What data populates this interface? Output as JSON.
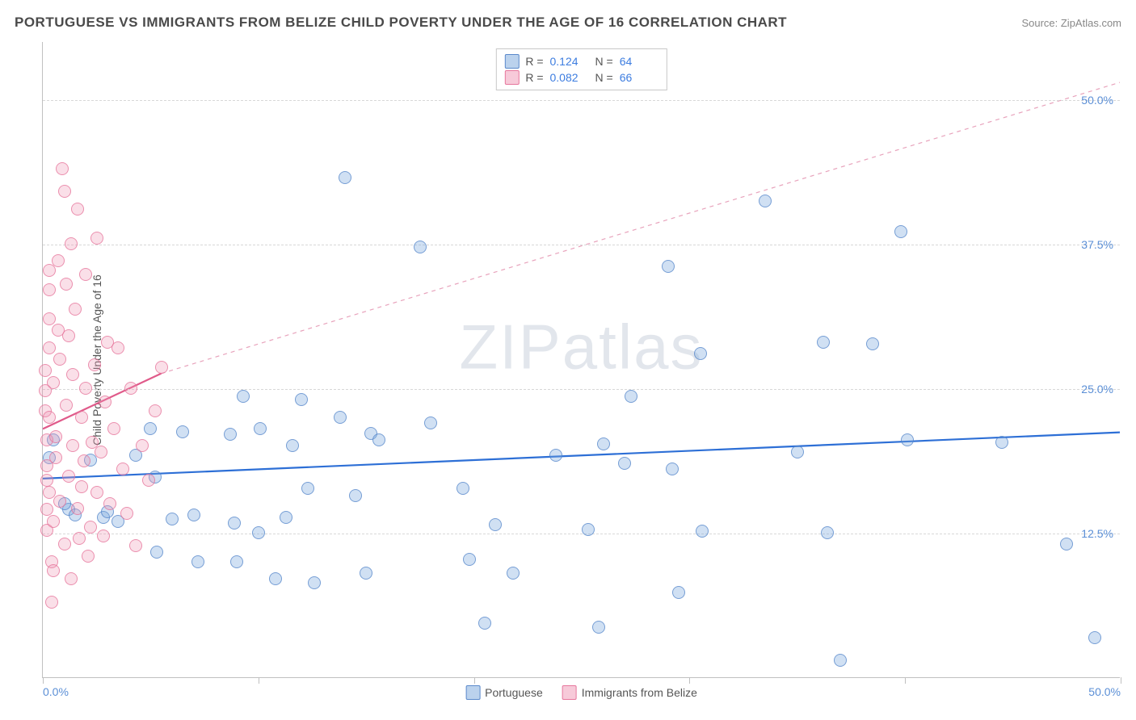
{
  "title": "PORTUGUESE VS IMMIGRANTS FROM BELIZE CHILD POVERTY UNDER THE AGE OF 16 CORRELATION CHART",
  "source": "Source: ZipAtlas.com",
  "watermark_part1": "ZIP",
  "watermark_part2": "atlas",
  "y_axis_label": "Child Poverty Under the Age of 16",
  "chart": {
    "type": "scatter",
    "xlim": [
      0,
      50
    ],
    "ylim": [
      0,
      55
    ],
    "x_ticks": [
      0,
      10,
      20,
      30,
      40,
      50
    ],
    "x_tick_labels": [
      "0.0%",
      "",
      "",
      "",
      "",
      "50.0%"
    ],
    "y_ticks": [
      12.5,
      25.0,
      37.5,
      50.0
    ],
    "y_tick_labels": [
      "12.5%",
      "25.0%",
      "37.5%",
      "50.0%"
    ],
    "grid_color": "#d8d8d8",
    "background_color": "#ffffff",
    "series": [
      {
        "name": "Portuguese",
        "color_fill": "rgba(120,165,220,0.35)",
        "color_stroke": "rgba(80,130,200,0.7)",
        "marker_size": 16,
        "R": "0.124",
        "N": "64",
        "trend": {
          "x1": 0,
          "y1": 17.2,
          "x2": 50,
          "y2": 21.2,
          "color": "#2d6fd6",
          "width": 2.2,
          "dash": "none"
        },
        "extrapolation": null,
        "points": [
          [
            0.5,
            20.5
          ],
          [
            0.3,
            19.0
          ],
          [
            1.2,
            14.5
          ],
          [
            1.5,
            14.0
          ],
          [
            2.2,
            18.8
          ],
          [
            1.0,
            15.0
          ],
          [
            2.8,
            13.8
          ],
          [
            3.0,
            14.3
          ],
          [
            3.5,
            13.5
          ],
          [
            4.3,
            19.2
          ],
          [
            5.0,
            21.5
          ],
          [
            5.2,
            17.3
          ],
          [
            5.3,
            10.8
          ],
          [
            6.0,
            13.7
          ],
          [
            6.5,
            21.2
          ],
          [
            7.0,
            14.0
          ],
          [
            7.2,
            10.0
          ],
          [
            8.7,
            21.0
          ],
          [
            8.9,
            13.3
          ],
          [
            9.0,
            10.0
          ],
          [
            9.3,
            24.3
          ],
          [
            10.0,
            12.5
          ],
          [
            10.1,
            21.5
          ],
          [
            10.8,
            8.5
          ],
          [
            11.3,
            13.8
          ],
          [
            11.6,
            20.0
          ],
          [
            12.0,
            24.0
          ],
          [
            12.3,
            16.3
          ],
          [
            12.6,
            8.2
          ],
          [
            13.8,
            22.5
          ],
          [
            14.0,
            43.2
          ],
          [
            14.5,
            15.7
          ],
          [
            15.0,
            9.0
          ],
          [
            15.2,
            21.1
          ],
          [
            15.6,
            20.5
          ],
          [
            17.5,
            37.2
          ],
          [
            18.0,
            22.0
          ],
          [
            19.5,
            16.3
          ],
          [
            19.8,
            10.2
          ],
          [
            20.5,
            4.7
          ],
          [
            21.0,
            13.2
          ],
          [
            21.8,
            9.0
          ],
          [
            23.8,
            19.2
          ],
          [
            25.3,
            12.8
          ],
          [
            25.8,
            4.3
          ],
          [
            26.0,
            20.2
          ],
          [
            27.0,
            18.5
          ],
          [
            27.3,
            24.3
          ],
          [
            29.0,
            35.5
          ],
          [
            29.2,
            18.0
          ],
          [
            29.5,
            7.3
          ],
          [
            30.5,
            28.0
          ],
          [
            30.6,
            12.6
          ],
          [
            33.5,
            41.2
          ],
          [
            35.0,
            19.5
          ],
          [
            36.2,
            29.0
          ],
          [
            36.4,
            12.5
          ],
          [
            37.0,
            1.5
          ],
          [
            38.5,
            28.8
          ],
          [
            39.8,
            38.5
          ],
          [
            40.1,
            20.5
          ],
          [
            44.5,
            20.3
          ],
          [
            47.5,
            11.5
          ],
          [
            48.8,
            3.4
          ]
        ]
      },
      {
        "name": "Immigrants from Belize",
        "color_fill": "rgba(240,150,180,0.3)",
        "color_stroke": "rgba(230,110,150,0.7)",
        "marker_size": 16,
        "R": "0.082",
        "N": "66",
        "trend": {
          "x1": 0,
          "y1": 21.5,
          "x2": 5.5,
          "y2": 26.3,
          "color": "#e05a8a",
          "width": 2.2,
          "dash": "none"
        },
        "extrapolation": {
          "x1": 5.5,
          "y1": 26.3,
          "x2": 50,
          "y2": 51.5,
          "color": "#e8a3bc",
          "width": 1.2,
          "dash": "5,5"
        },
        "points": [
          [
            0.1,
            23.0
          ],
          [
            0.1,
            24.8
          ],
          [
            0.1,
            26.5
          ],
          [
            0.2,
            20.5
          ],
          [
            0.2,
            18.3
          ],
          [
            0.2,
            14.5
          ],
          [
            0.2,
            12.7
          ],
          [
            0.2,
            17.0
          ],
          [
            0.3,
            28.5
          ],
          [
            0.3,
            33.5
          ],
          [
            0.3,
            35.2
          ],
          [
            0.3,
            31.0
          ],
          [
            0.3,
            22.5
          ],
          [
            0.3,
            16.0
          ],
          [
            0.4,
            10.0
          ],
          [
            0.4,
            6.5
          ],
          [
            0.5,
            25.5
          ],
          [
            0.5,
            13.5
          ],
          [
            0.5,
            9.2
          ],
          [
            0.6,
            19.0
          ],
          [
            0.6,
            20.8
          ],
          [
            0.7,
            30.0
          ],
          [
            0.7,
            36.0
          ],
          [
            0.8,
            15.2
          ],
          [
            0.8,
            27.5
          ],
          [
            0.9,
            44.0
          ],
          [
            1.0,
            42.0
          ],
          [
            1.0,
            11.5
          ],
          [
            1.1,
            23.5
          ],
          [
            1.1,
            34.0
          ],
          [
            1.2,
            17.4
          ],
          [
            1.2,
            29.5
          ],
          [
            1.3,
            37.5
          ],
          [
            1.3,
            8.5
          ],
          [
            1.4,
            20.0
          ],
          [
            1.4,
            26.2
          ],
          [
            1.5,
            31.8
          ],
          [
            1.6,
            14.6
          ],
          [
            1.6,
            40.5
          ],
          [
            1.7,
            12.0
          ],
          [
            1.8,
            22.5
          ],
          [
            1.8,
            16.5
          ],
          [
            1.9,
            18.7
          ],
          [
            2.0,
            25.0
          ],
          [
            2.0,
            34.8
          ],
          [
            2.1,
            10.5
          ],
          [
            2.2,
            13.0
          ],
          [
            2.3,
            20.3
          ],
          [
            2.4,
            27.0
          ],
          [
            2.5,
            16.0
          ],
          [
            2.5,
            38.0
          ],
          [
            2.7,
            19.5
          ],
          [
            2.8,
            12.2
          ],
          [
            2.9,
            23.8
          ],
          [
            3.0,
            29.0
          ],
          [
            3.1,
            15.0
          ],
          [
            3.3,
            21.5
          ],
          [
            3.5,
            28.5
          ],
          [
            3.7,
            18.0
          ],
          [
            3.9,
            14.2
          ],
          [
            4.1,
            25.0
          ],
          [
            4.3,
            11.4
          ],
          [
            4.6,
            20.0
          ],
          [
            4.9,
            17.0
          ],
          [
            5.2,
            23.0
          ],
          [
            5.5,
            26.8
          ]
        ]
      }
    ]
  },
  "stats_legend": {
    "rows": [
      {
        "swatch": "blue",
        "r_label": "R =",
        "r_val": "0.124",
        "n_label": "N =",
        "n_val": "64"
      },
      {
        "swatch": "pink",
        "r_label": "R =",
        "r_val": "0.082",
        "n_label": "N =",
        "n_val": "66"
      }
    ]
  },
  "bottom_legend": {
    "items": [
      {
        "swatch": "blue",
        "label": "Portuguese"
      },
      {
        "swatch": "pink",
        "label": "Immigrants from Belize"
      }
    ]
  }
}
